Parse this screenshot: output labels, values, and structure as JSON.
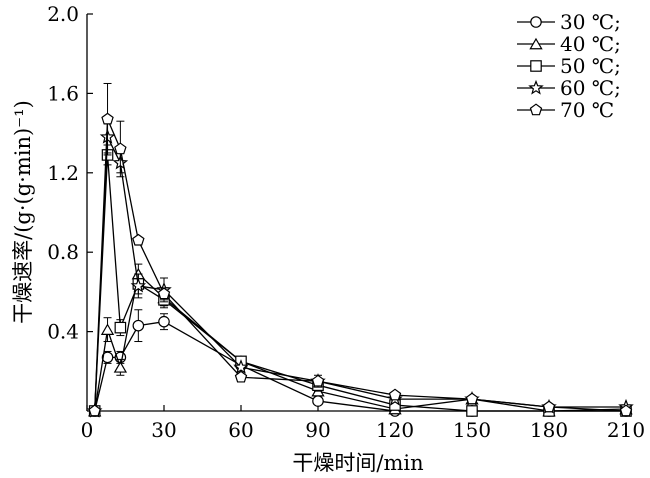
{
  "chart_data": {
    "type": "line",
    "xlabel": "干燥时间/min",
    "ylabel": "干燥速率/(g·(g·min)⁻¹)",
    "xlim": [
      0,
      210
    ],
    "ylim": [
      0,
      2.0
    ],
    "xticks": [
      0,
      30,
      60,
      90,
      120,
      150,
      180,
      210
    ],
    "yticks": [
      0.4,
      0.8,
      1.2,
      1.6,
      2.0
    ],
    "ytick_labels": [
      "0.4",
      "0.8",
      "1.2",
      "1.6",
      "2.0"
    ],
    "legend_position": "top-right",
    "series": [
      {
        "name": "30 ℃;",
        "marker": "circle",
        "x": [
          3,
          8,
          13,
          20,
          30,
          60,
          90,
          120,
          150,
          180,
          210
        ],
        "y": [
          0.0,
          0.27,
          0.27,
          0.43,
          0.45,
          0.23,
          0.05,
          0.0,
          0.0,
          0.0,
          0.0
        ],
        "err": [
          0,
          0.03,
          0.03,
          0.08,
          0.04,
          0,
          0,
          0,
          0,
          0,
          0
        ]
      },
      {
        "name": "40 ℃;",
        "marker": "triangle",
        "x": [
          3,
          8,
          13,
          20,
          30,
          60,
          90,
          120,
          150,
          180,
          210
        ],
        "y": [
          0.0,
          0.41,
          0.22,
          0.69,
          0.57,
          0.25,
          0.1,
          0.01,
          0.06,
          0.0,
          0.01
        ],
        "err": [
          0,
          0.06,
          0.04,
          0.05,
          0.04,
          0,
          0,
          0,
          0,
          0,
          0
        ]
      },
      {
        "name": "50 ℃;",
        "marker": "square",
        "x": [
          3,
          8,
          13,
          20,
          30,
          60,
          90,
          120,
          150,
          180,
          210
        ],
        "y": [
          0.0,
          1.29,
          0.42,
          0.64,
          0.56,
          0.25,
          0.13,
          0.03,
          0.0,
          0.0,
          0.0
        ],
        "err": [
          0,
          0.05,
          0.04,
          0.05,
          0.04,
          0,
          0.03,
          0,
          0,
          0,
          0
        ]
      },
      {
        "name": "60 ℃;",
        "marker": "star",
        "x": [
          3,
          8,
          13,
          20,
          30,
          60,
          90,
          120,
          150,
          180,
          210
        ],
        "y": [
          0.0,
          1.38,
          1.25,
          0.63,
          0.61,
          0.22,
          0.15,
          0.06,
          0.06,
          0.02,
          0.02
        ],
        "err": [
          0,
          0.08,
          0.05,
          0.06,
          0.06,
          0,
          0.03,
          0,
          0,
          0,
          0
        ]
      },
      {
        "name": "70 ℃",
        "marker": "pentagon",
        "x": [
          3,
          8,
          13,
          20,
          30,
          60,
          90,
          120,
          150,
          180,
          210
        ],
        "y": [
          0.0,
          1.47,
          1.32,
          0.86,
          0.59,
          0.17,
          0.15,
          0.08,
          0.06,
          0.02,
          0.0
        ],
        "err": [
          0,
          0.18,
          0.14,
          0,
          0.03,
          0,
          0,
          0,
          0,
          0,
          0
        ]
      }
    ]
  }
}
